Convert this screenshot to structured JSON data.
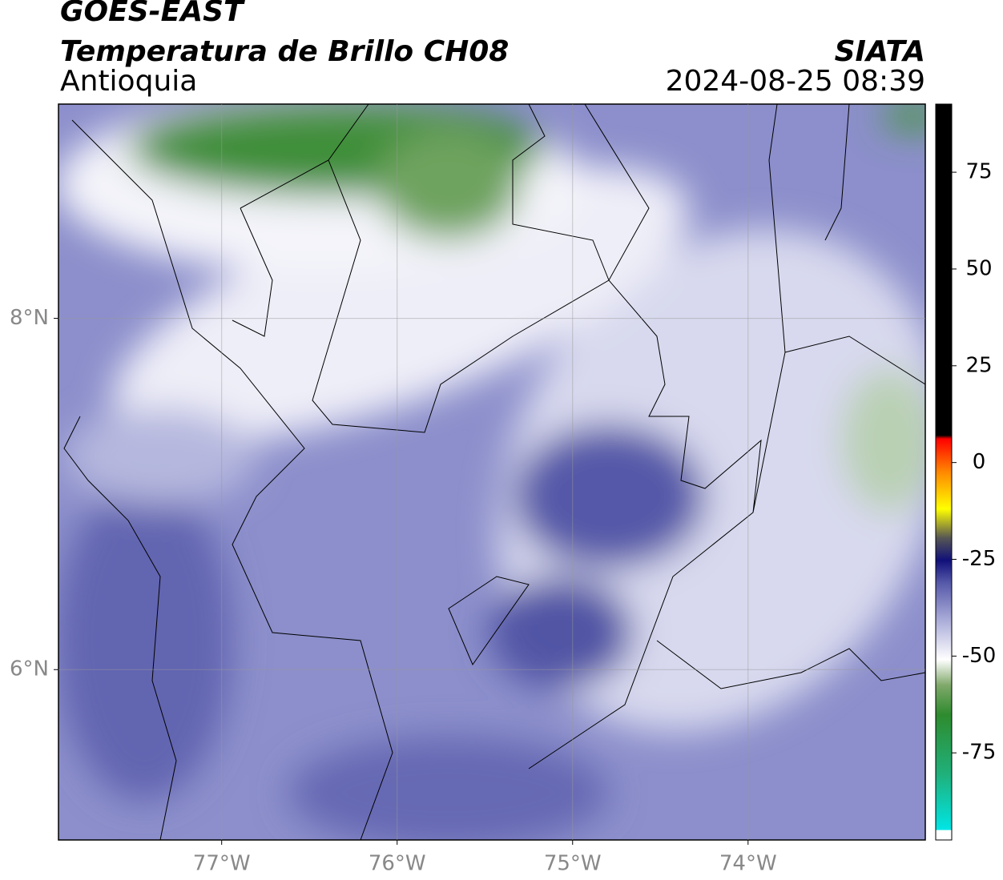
{
  "chart_data": {
    "type": "map",
    "title": "GOES-EAST",
    "subtitle": "Temperatura de Brillo CH08",
    "region": "Antioquia",
    "source": "SIATA",
    "timestamp": "2024-08-25 08:39",
    "xlim": [
      -77.93,
      -72.99
    ],
    "ylim": [
      5.03,
      9.22
    ],
    "xticks": [
      {
        "value": -77,
        "label": "77°W"
      },
      {
        "value": -76,
        "label": "76°W"
      },
      {
        "value": -75,
        "label": "75°W"
      },
      {
        "value": -74,
        "label": "74°W"
      }
    ],
    "yticks": [
      {
        "value": 6,
        "label": "6°N"
      },
      {
        "value": 8,
        "label": "8°N"
      }
    ],
    "grid": true,
    "colorbar": {
      "lim": [
        -97.5,
        92.6
      ],
      "ticks": [
        -75,
        -50,
        -25,
        0,
        25,
        50,
        75
      ]
    }
  }
}
